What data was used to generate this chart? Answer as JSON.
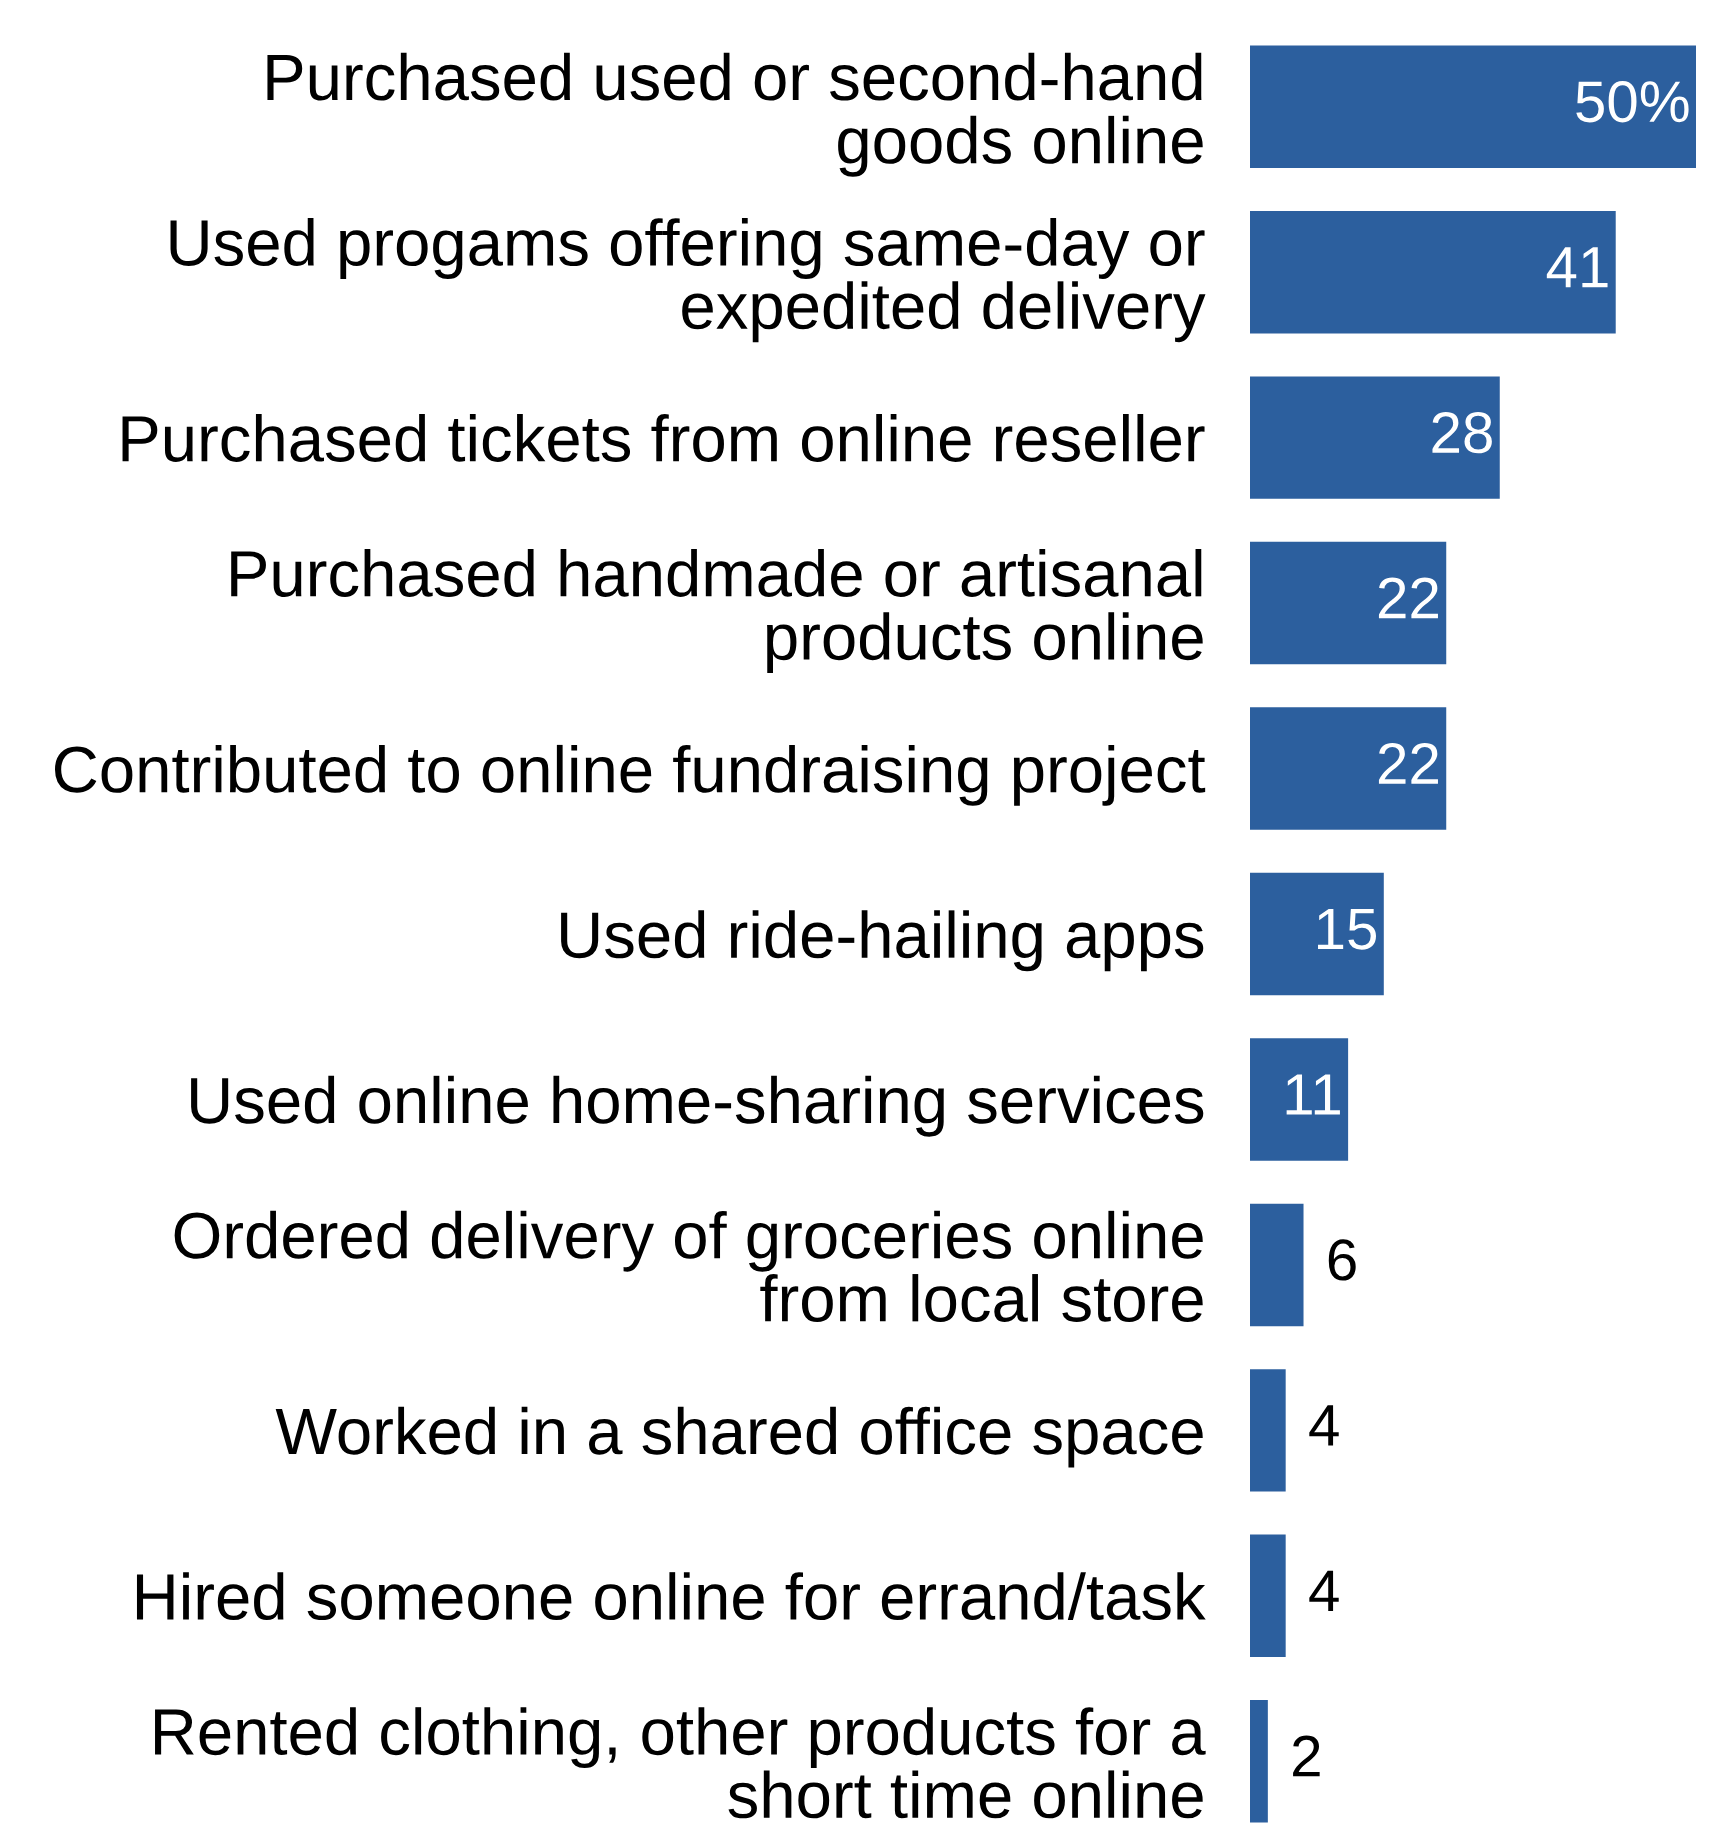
{
  "chart_data": {
    "type": "bar",
    "orientation": "horizontal",
    "categories": [
      "Purchased used or second-hand\ngoods online",
      "Used progams offering same-day or\nexpedited delivery",
      "Purchased tickets from online reseller",
      "Purchased handmade or artisanal\nproducts online",
      "Contributed to online fundraising project",
      "Used ride-hailing apps",
      "Used online home-sharing services",
      "Ordered delivery of groceries online\nfrom local store",
      "Worked in a shared office space",
      "Hired someone online for errand/task",
      "Rented clothing, other products for a\nshort time online"
    ],
    "values": [
      50,
      41,
      28,
      22,
      22,
      15,
      11,
      6,
      4,
      4,
      2
    ],
    "value_labels": [
      "50%",
      "41",
      "28",
      "22",
      "22",
      "15",
      "11",
      "6",
      "4",
      "4",
      "2"
    ],
    "color": "#2c5f9e",
    "grid": false,
    "tick_labels": "y"
  }
}
